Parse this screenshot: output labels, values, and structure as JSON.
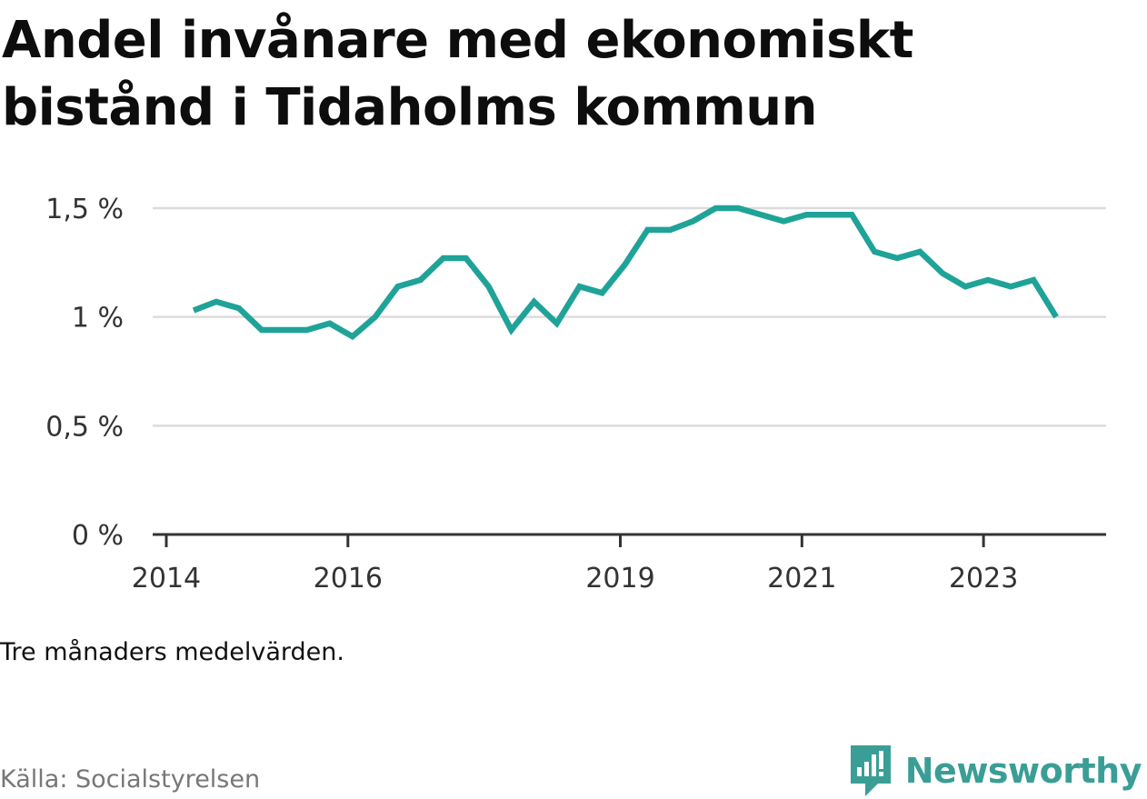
{
  "title": "Andel invånare med ekonomiskt bistånd i Tidaholms kommun",
  "note": "Tre månaders medelvärden.",
  "source": "Källa: Socialstyrelsen",
  "brand": {
    "name": "Newsworthy",
    "icon": "newsworthy-logo-icon",
    "color": "#3a9e96"
  },
  "chart_data": {
    "type": "line",
    "title": "Andel invånare med ekonomiskt bistånd i Tidaholms kommun",
    "xlabel": "",
    "ylabel": "",
    "ylim": [
      0,
      1.5
    ],
    "yticks": [
      {
        "value": 0,
        "label": "0 %"
      },
      {
        "value": 0.5,
        "label": "0,5 %"
      },
      {
        "value": 1.0,
        "label": "1 %"
      },
      {
        "value": 1.5,
        "label": "1,5 %"
      }
    ],
    "xticks": [
      {
        "value": 2014,
        "label": "2014"
      },
      {
        "value": 2016,
        "label": "2016"
      },
      {
        "value": 2019,
        "label": "2019"
      },
      {
        "value": 2021,
        "label": "2021"
      },
      {
        "value": 2023,
        "label": "2023"
      }
    ],
    "xlim": [
      2013.85,
      2024.35
    ],
    "grid": true,
    "line_color": "#1fa398",
    "series": [
      {
        "x": [
          2014.3,
          2014.55,
          2014.8,
          2015.05,
          2015.3,
          2015.55,
          2015.8,
          2016.05,
          2016.3,
          2016.55,
          2016.8,
          2017.05,
          2017.3,
          2017.55,
          2017.8,
          2018.05,
          2018.3,
          2018.55,
          2018.8,
          2019.05,
          2019.3,
          2019.55,
          2019.8,
          2020.05,
          2020.3,
          2020.55,
          2020.8,
          2021.05,
          2021.3,
          2021.55,
          2021.8,
          2022.05,
          2022.3,
          2022.55,
          2022.8,
          2023.05,
          2023.3,
          2023.55,
          2023.8
        ],
        "values": [
          1.03,
          1.07,
          1.04,
          0.94,
          0.94,
          0.94,
          0.97,
          0.91,
          1.0,
          1.14,
          1.17,
          1.27,
          1.27,
          1.14,
          0.94,
          1.07,
          0.97,
          1.14,
          1.11,
          1.24,
          1.4,
          1.4,
          1.44,
          1.5,
          1.5,
          1.47,
          1.44,
          1.47,
          1.47,
          1.47,
          1.3,
          1.27,
          1.3,
          1.2,
          1.14,
          1.17,
          1.14,
          1.17,
          1.0
        ]
      }
    ]
  }
}
